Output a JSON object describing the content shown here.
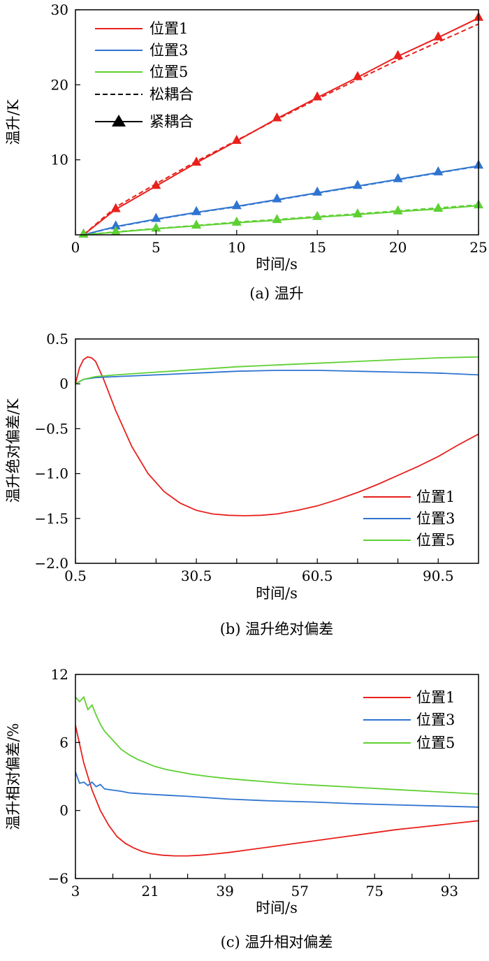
{
  "colors": {
    "pos1": "#e8201c",
    "pos3": "#2f74d0",
    "pos5": "#5fd033",
    "axis": "#000000"
  },
  "chart_data": [
    {
      "type": "line",
      "caption": "(a) 温升",
      "xlabel": "时间/s",
      "ylabel": "温升/K",
      "xlim": [
        0,
        25
      ],
      "ylim": [
        0,
        30
      ],
      "xticks": [
        0,
        5,
        10,
        15,
        20,
        25
      ],
      "yticks": [
        10,
        20,
        30
      ],
      "x_tick_labels": [
        "0",
        "5",
        "10",
        "15",
        "20",
        "25"
      ],
      "y_tick_labels": [
        "10",
        "20",
        "30"
      ],
      "legend": {
        "placement": "top-left",
        "entries": [
          {
            "label": "位置1",
            "style": "pos1"
          },
          {
            "label": "位置3",
            "style": "pos3"
          },
          {
            "label": "位置5",
            "style": "pos5"
          },
          {
            "label": "松耦合",
            "style": "dashed"
          },
          {
            "label": "紧耦合",
            "style": "triangle"
          }
        ]
      },
      "series": [
        {
          "name": "位置1",
          "color_key": "pos1",
          "tight": {
            "x": [
              0.5,
              2.5,
              5,
              7.5,
              10,
              12.5,
              15,
              17.5,
              20,
              22.5,
              25
            ],
            "y": [
              0,
              3.4,
              6.5,
              9.6,
              12.5,
              15.5,
              18.3,
              21.0,
              23.8,
              26.3,
              28.9
            ]
          },
          "loose": {
            "x": [
              0.5,
              2.5,
              5,
              7.5,
              10,
              12.5,
              15,
              17.5,
              20,
              22.5,
              25
            ],
            "y": [
              0,
              3.7,
              6.8,
              9.8,
              12.6,
              15.4,
              18.1,
              20.7,
              23.3,
              25.7,
              28.1
            ]
          },
          "markers": [
            2.5,
            5,
            7.5,
            10,
            12.5,
            15,
            17.5,
            20,
            22.5,
            25
          ]
        },
        {
          "name": "位置3",
          "color_key": "pos3",
          "tight": {
            "x": [
              0.5,
              2.5,
              5,
              7.5,
              10,
              12.5,
              15,
              17.5,
              20,
              22.5,
              25
            ],
            "y": [
              0,
              1.1,
              2.1,
              3.0,
              3.8,
              4.7,
              5.6,
              6.5,
              7.4,
              8.3,
              9.2
            ]
          },
          "loose": {
            "x": [
              0.5,
              2.5,
              5,
              7.5,
              10,
              12.5,
              15,
              17.5,
              20,
              22.5,
              25
            ],
            "y": [
              0,
              1.05,
              2.05,
              2.95,
              3.75,
              4.65,
              5.55,
              6.45,
              7.35,
              8.25,
              9.15
            ]
          },
          "markers": [
            2.5,
            5,
            7.5,
            10,
            12.5,
            15,
            17.5,
            20,
            22.5,
            25
          ]
        },
        {
          "name": "位置5",
          "color_key": "pos5",
          "tight": {
            "x": [
              0.5,
              2.5,
              5,
              7.5,
              10,
              12.5,
              15,
              17.5,
              20,
              22.5,
              25
            ],
            "y": [
              0,
              0.35,
              0.8,
              1.2,
              1.6,
              1.95,
              2.35,
              2.7,
              3.1,
              3.45,
              3.9
            ]
          },
          "loose": {
            "x": [
              0.5,
              2.5,
              5,
              7.5,
              10,
              12.5,
              15,
              17.5,
              20,
              22.5,
              25
            ],
            "y": [
              0,
              0.4,
              0.85,
              1.25,
              1.7,
              2.05,
              2.45,
              2.8,
              3.2,
              3.6,
              4.0
            ]
          },
          "markers": [
            2.5,
            5,
            7.5,
            10,
            12.5,
            15,
            17.5,
            20,
            22.5,
            25
          ]
        }
      ]
    },
    {
      "type": "line",
      "caption": "(b) 温升绝对偏差",
      "xlabel": "时间/s",
      "ylabel": "温升绝对偏差/K",
      "xlim": [
        0.5,
        100.5
      ],
      "ylim": [
        -2.0,
        0.5
      ],
      "xticks": [
        0.5,
        30.5,
        60.5,
        90.5
      ],
      "xminor": [
        10.5,
        20.5,
        40.5,
        50.5,
        70.5,
        80.5
      ],
      "yticks": [
        -2.0,
        -1.5,
        -1.0,
        -0.5,
        0,
        0.5
      ],
      "x_tick_labels": [
        "0.5",
        "30.5",
        "60.5",
        "90.5"
      ],
      "y_tick_labels": [
        "−2.0",
        "−1.5",
        "−1.0",
        "−0.5",
        "0",
        "0.5"
      ],
      "legend": {
        "placement": "bottom-right",
        "entries": [
          {
            "label": "位置1",
            "style": "pos1"
          },
          {
            "label": "位置3",
            "style": "pos3"
          },
          {
            "label": "位置5",
            "style": "pos5"
          }
        ]
      },
      "series": [
        {
          "name": "位置1",
          "color_key": "pos1",
          "x": [
            0.5,
            1.5,
            2.5,
            3.5,
            4.5,
            5.5,
            7.5,
            10.5,
            14.5,
            18.5,
            22.5,
            26.5,
            30.5,
            34.5,
            38.5,
            42.5,
            46.5,
            50.5,
            55.5,
            60.5,
            65.5,
            70.5,
            75.5,
            80.5,
            85.5,
            90.5,
            95.5,
            100.5
          ],
          "y": [
            0.0,
            0.18,
            0.27,
            0.3,
            0.29,
            0.25,
            0.05,
            -0.3,
            -0.7,
            -1.0,
            -1.2,
            -1.33,
            -1.41,
            -1.45,
            -1.465,
            -1.47,
            -1.465,
            -1.45,
            -1.41,
            -1.36,
            -1.29,
            -1.21,
            -1.12,
            -1.02,
            -0.92,
            -0.81,
            -0.68,
            -0.56
          ]
        },
        {
          "name": "位置3",
          "color_key": "pos3",
          "x": [
            0.5,
            2.5,
            5.5,
            10.5,
            20.5,
            30.5,
            40.5,
            50.5,
            60.5,
            70.5,
            80.5,
            90.5,
            100.5
          ],
          "y": [
            0.0,
            0.05,
            0.07,
            0.08,
            0.1,
            0.12,
            0.14,
            0.15,
            0.15,
            0.14,
            0.13,
            0.12,
            0.1
          ]
        },
        {
          "name": "位置5",
          "color_key": "pos5",
          "x": [
            0.5,
            2.5,
            5.5,
            10.5,
            20.5,
            30.5,
            40.5,
            50.5,
            60.5,
            70.5,
            80.5,
            90.5,
            100.5
          ],
          "y": [
            0.0,
            0.05,
            0.08,
            0.1,
            0.13,
            0.16,
            0.19,
            0.21,
            0.23,
            0.25,
            0.27,
            0.29,
            0.3
          ]
        }
      ]
    },
    {
      "type": "line",
      "caption": "(c) 温升相对偏差",
      "xlabel": "时间/s",
      "ylabel": "温升相对偏差/%",
      "xlim": [
        3,
        100
      ],
      "ylim": [
        -6,
        12
      ],
      "xticks": [
        3,
        21,
        39,
        57,
        75,
        93
      ],
      "xminor": [
        12,
        30,
        48,
        66,
        84
      ],
      "yticks": [
        -6,
        0,
        6,
        12
      ],
      "x_tick_labels": [
        "3",
        "21",
        "39",
        "57",
        "75",
        "93"
      ],
      "y_tick_labels": [
        "−6",
        "0",
        "6",
        "12"
      ],
      "legend": {
        "placement": "top-right",
        "entries": [
          {
            "label": "位置1",
            "style": "pos1"
          },
          {
            "label": "位置3",
            "style": "pos3"
          },
          {
            "label": "位置5",
            "style": "pos5"
          }
        ]
      },
      "series": [
        {
          "name": "位置1",
          "color_key": "pos1",
          "x": [
            3,
            5,
            7,
            9,
            11,
            13,
            15,
            17,
            19,
            21,
            24,
            27,
            30,
            33,
            36,
            40,
            45,
            50,
            55,
            60,
            65,
            70,
            75,
            80,
            85,
            90,
            95,
            100
          ],
          "y": [
            7.5,
            4.2,
            1.8,
            0.0,
            -1.3,
            -2.3,
            -2.9,
            -3.3,
            -3.6,
            -3.8,
            -3.95,
            -4.0,
            -4.0,
            -3.95,
            -3.85,
            -3.7,
            -3.45,
            -3.2,
            -2.95,
            -2.7,
            -2.45,
            -2.2,
            -1.95,
            -1.7,
            -1.5,
            -1.3,
            -1.1,
            -0.9
          ]
        },
        {
          "name": "位置3",
          "color_key": "pos3",
          "x": [
            3,
            4,
            5,
            6,
            7,
            8,
            9,
            10,
            12,
            14,
            16,
            18,
            20,
            25,
            30,
            40,
            50,
            60,
            70,
            80,
            90,
            100
          ],
          "y": [
            3.4,
            2.4,
            2.5,
            2.2,
            2.5,
            2.1,
            2.3,
            1.9,
            1.8,
            1.7,
            1.55,
            1.5,
            1.45,
            1.35,
            1.25,
            1.0,
            0.85,
            0.75,
            0.6,
            0.5,
            0.4,
            0.3
          ]
        },
        {
          "name": "位置5",
          "color_key": "pos5",
          "x": [
            3,
            4,
            5,
            6,
            7,
            8,
            9,
            10,
            12,
            14,
            16,
            18,
            20,
            22,
            25,
            28,
            31,
            35,
            40,
            45,
            50,
            55,
            60,
            70,
            80,
            90,
            100
          ],
          "y": [
            10.0,
            9.6,
            10.0,
            8.9,
            9.3,
            8.4,
            7.6,
            7.0,
            6.2,
            5.4,
            4.9,
            4.5,
            4.2,
            3.9,
            3.6,
            3.4,
            3.2,
            3.0,
            2.8,
            2.65,
            2.5,
            2.35,
            2.25,
            2.05,
            1.85,
            1.65,
            1.45
          ]
        }
      ]
    }
  ]
}
